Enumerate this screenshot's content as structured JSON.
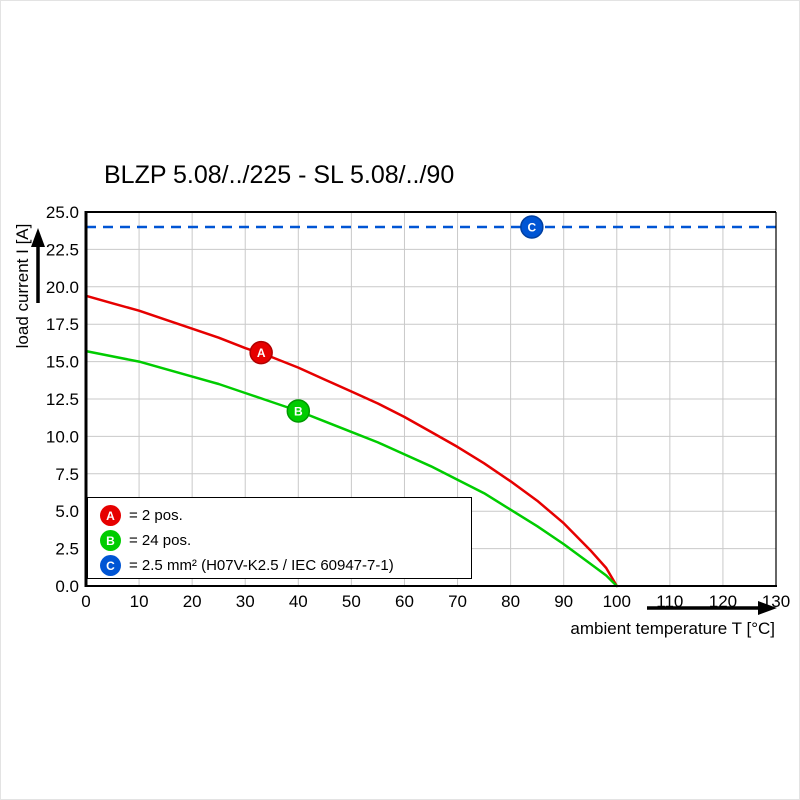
{
  "chart_data": {
    "type": "line",
    "title": "BLZP 5.08/../225 - SL 5.08/../90",
    "xlabel": "ambient temperature T [°C]",
    "ylabel": "load current I [A]",
    "xlim": [
      0,
      130
    ],
    "ylim": [
      0,
      25
    ],
    "xticks": [
      0,
      10,
      20,
      30,
      40,
      50,
      60,
      70,
      80,
      90,
      100,
      110,
      120,
      130
    ],
    "yticks": [
      0,
      2.5,
      5,
      7.5,
      10,
      12.5,
      15,
      17.5,
      20,
      22.5,
      25
    ],
    "ytick_labels": [
      "0.0",
      "2.5",
      "5.0",
      "7.5",
      "10.0",
      "12.5",
      "15.0",
      "17.5",
      "20.0",
      "22.5",
      "25.0"
    ],
    "grid": true,
    "grid_color": "#c9c9c9",
    "threshold": {
      "key": "C",
      "value": 24,
      "marker_x": 84,
      "color": "#0055d4",
      "stroke_dark": "#003fa0",
      "style": "dashed"
    },
    "series": [
      {
        "name": "A",
        "label": "= 2 pos.",
        "color": "#e60000",
        "stroke_dark": "#b00000",
        "marker_at": [
          33,
          15.6
        ],
        "points": [
          [
            0,
            19.4
          ],
          [
            5,
            18.9
          ],
          [
            10,
            18.4
          ],
          [
            15,
            17.8
          ],
          [
            20,
            17.2
          ],
          [
            25,
            16.6
          ],
          [
            30,
            15.9
          ],
          [
            35,
            15.3
          ],
          [
            40,
            14.6
          ],
          [
            45,
            13.8
          ],
          [
            50,
            13.0
          ],
          [
            55,
            12.2
          ],
          [
            60,
            11.3
          ],
          [
            65,
            10.3
          ],
          [
            70,
            9.3
          ],
          [
            75,
            8.2
          ],
          [
            80,
            7.0
          ],
          [
            85,
            5.7
          ],
          [
            90,
            4.2
          ],
          [
            95,
            2.4
          ],
          [
            98,
            1.2
          ],
          [
            100,
            0
          ]
        ]
      },
      {
        "name": "B",
        "label": "= 24 pos.",
        "color": "#00cc00",
        "stroke_dark": "#009900",
        "marker_at": [
          40,
          11.7
        ],
        "points": [
          [
            0,
            15.7
          ],
          [
            5,
            15.35
          ],
          [
            10,
            15.0
          ],
          [
            15,
            14.5
          ],
          [
            20,
            14.0
          ],
          [
            25,
            13.5
          ],
          [
            30,
            12.9
          ],
          [
            35,
            12.3
          ],
          [
            40,
            11.7
          ],
          [
            45,
            11.0
          ],
          [
            50,
            10.3
          ],
          [
            55,
            9.6
          ],
          [
            60,
            8.8
          ],
          [
            65,
            8.0
          ],
          [
            70,
            7.1
          ],
          [
            75,
            6.2
          ],
          [
            80,
            5.1
          ],
          [
            85,
            4.0
          ],
          [
            90,
            2.8
          ],
          [
            95,
            1.5
          ],
          [
            98,
            0.7
          ],
          [
            100,
            0
          ]
        ]
      }
    ],
    "legend": {
      "position": "bottom-left-inside",
      "items": [
        {
          "key": "A",
          "color": "#e60000",
          "label": "= 2 pos."
        },
        {
          "key": "B",
          "color": "#00cc00",
          "label": "= 24 pos."
        },
        {
          "key": "C",
          "color": "#0055d4",
          "label": "= 2.5 mm² (H07V-K2.5 / IEC 60947-7-1)"
        }
      ]
    }
  }
}
